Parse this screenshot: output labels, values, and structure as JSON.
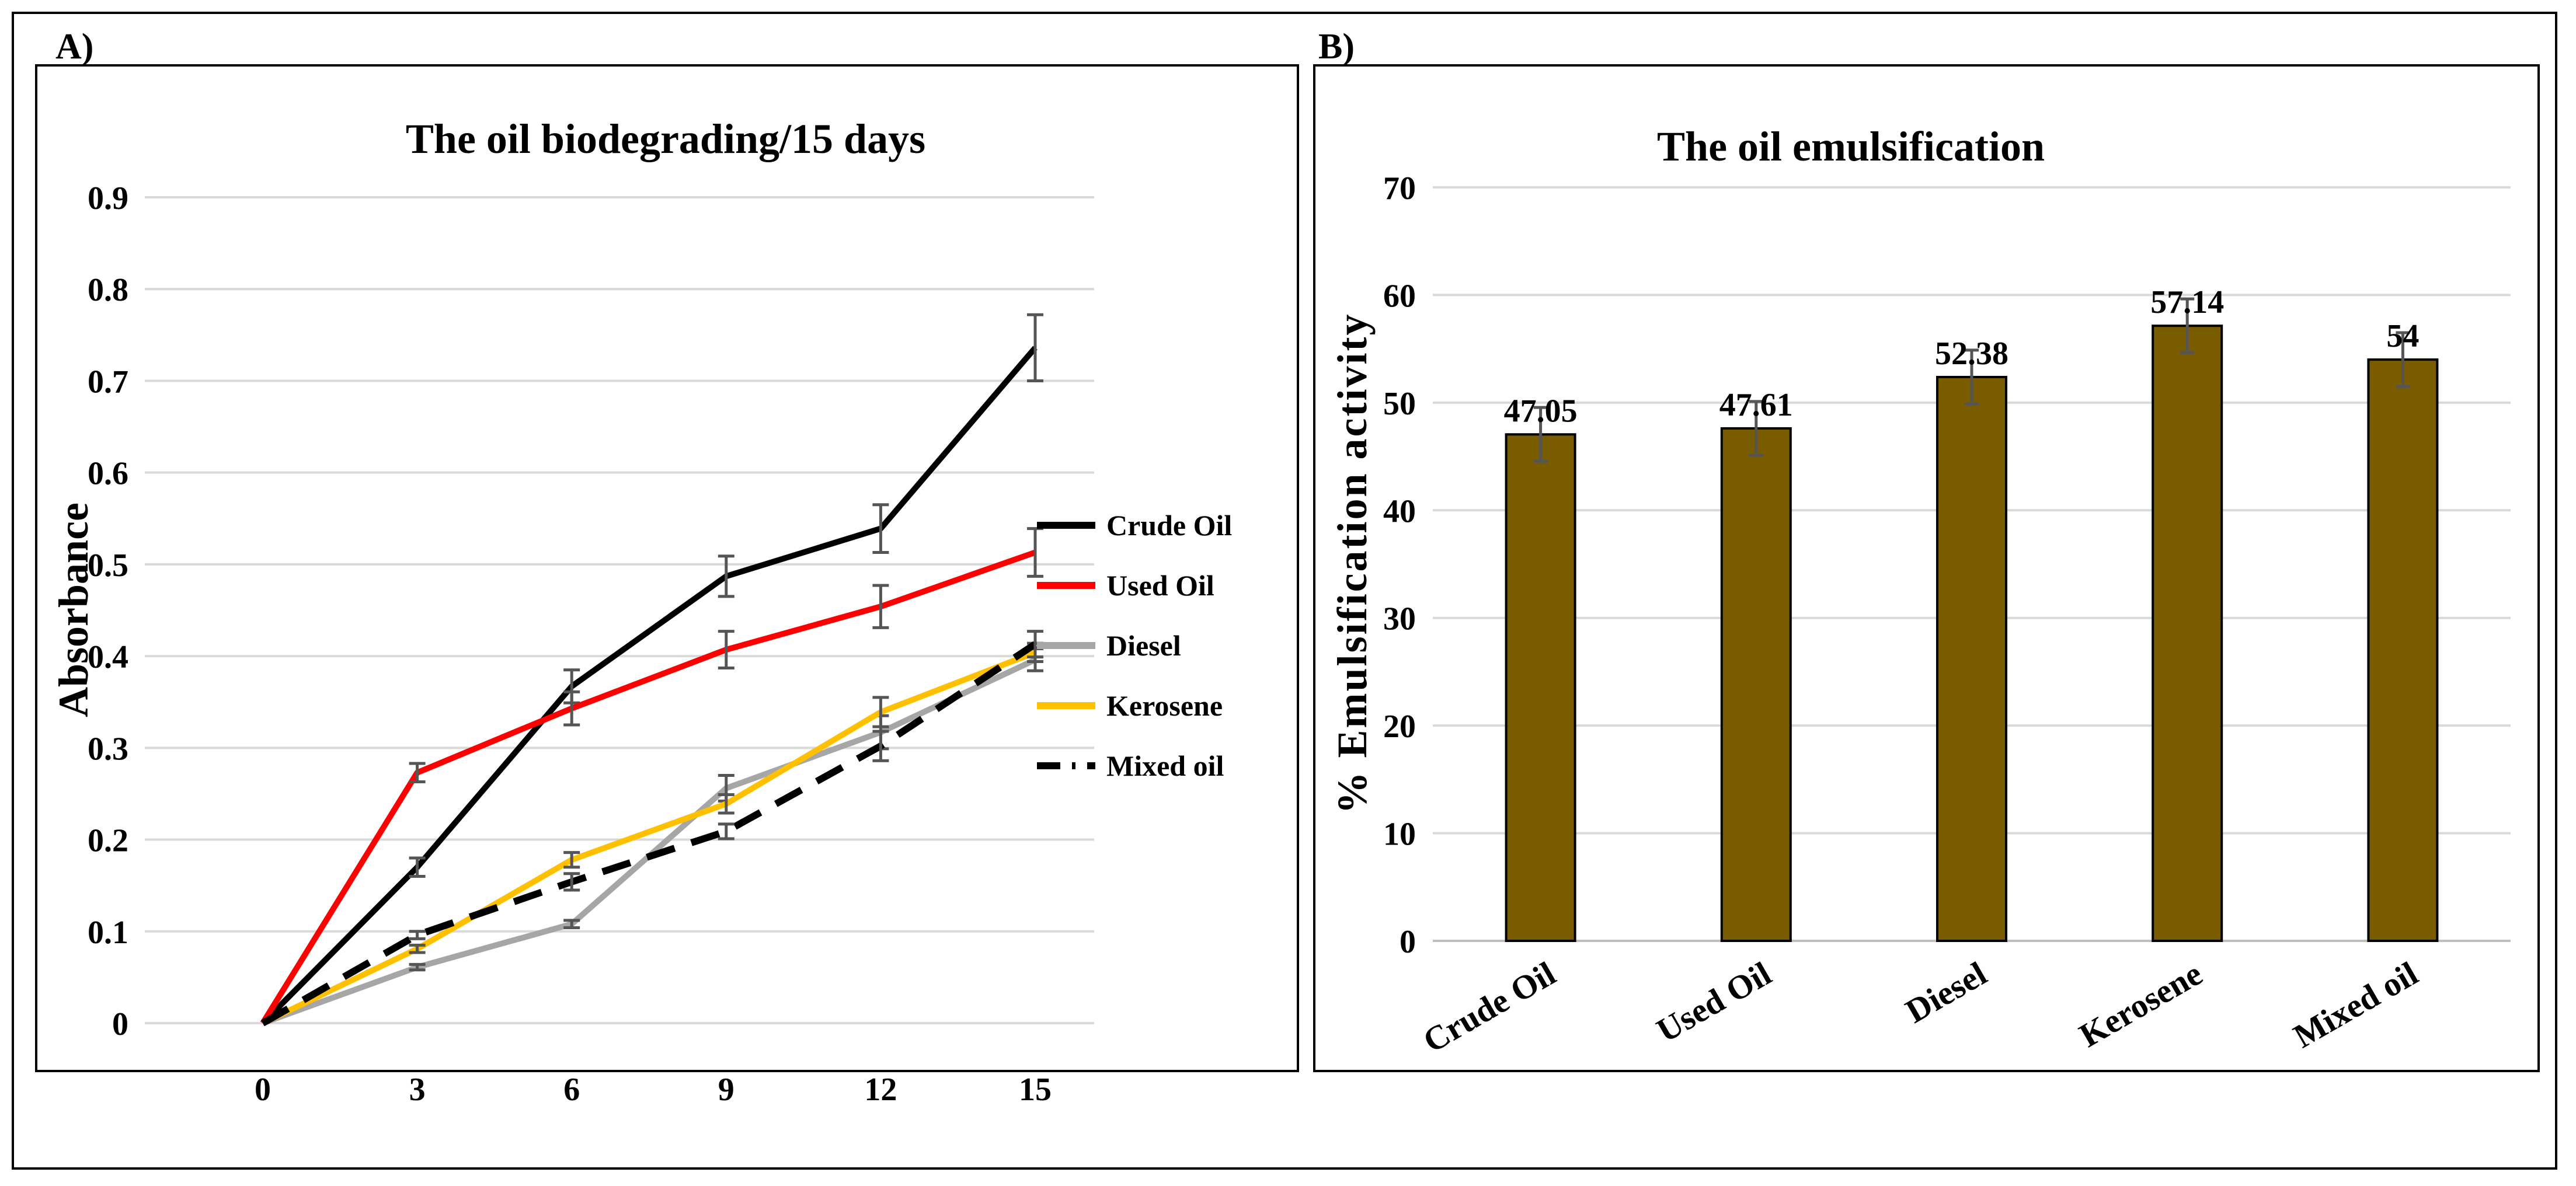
{
  "chart_data": [
    {
      "panel_label": "A)",
      "type": "line",
      "title": "The oil biodegrading/15 days",
      "xlabel": "",
      "ylabel": "Absorbance",
      "x": [
        0,
        3,
        6,
        9,
        12,
        15
      ],
      "x_ticks": [
        "0",
        "3",
        "6",
        "9",
        "12",
        "15"
      ],
      "y_ticks": [
        "0",
        "0.1",
        "0.2",
        "0.3",
        "0.4",
        "0.5",
        "0.6",
        "0.7",
        "0.8",
        "0.9"
      ],
      "ylim": [
        0,
        0.9
      ],
      "grid": true,
      "legend_position": "right",
      "series": [
        {
          "name": "Crude Oil",
          "color": "#000000",
          "dash": false,
          "values": [
            0,
            0.17,
            0.367,
            0.487,
            0.539,
            0.736
          ],
          "errors": [
            0,
            0.01,
            0.018,
            0.022,
            0.026,
            0.036
          ]
        },
        {
          "name": "Used Oil",
          "color": "#ff0000",
          "dash": false,
          "values": [
            0,
            0.273,
            0.343,
            0.407,
            0.454,
            0.513
          ],
          "errors": [
            0,
            0.01,
            0.018,
            0.02,
            0.023,
            0.026
          ]
        },
        {
          "name": "Diesel",
          "color": "#a6a6a6",
          "dash": false,
          "values": [
            0,
            0.061,
            0.108,
            0.256,
            0.317,
            0.396
          ],
          "errors": [
            0,
            0.003,
            0.004,
            0.014,
            0.018,
            0.012
          ]
        },
        {
          "name": "Kerosene",
          "color": "#ffc000",
          "dash": false,
          "values": [
            0,
            0.081,
            0.178,
            0.239,
            0.339,
            0.404
          ],
          "errors": [
            0,
            0.004,
            0.008,
            0.01,
            0.016,
            0.01
          ]
        },
        {
          "name": "Mixed oil",
          "color": "#000000",
          "dash": true,
          "values": [
            0,
            0.096,
            0.154,
            0.209,
            0.302,
            0.413
          ],
          "errors": [
            0,
            0.004,
            0.009,
            0.008,
            0.016,
            0.014
          ]
        }
      ]
    },
    {
      "panel_label": "B)",
      "type": "bar",
      "title": "The oil emulsification",
      "xlabel": "",
      "ylabel": "% Emulsification activity",
      "categories": [
        "Crude Oil",
        "Used Oil",
        "Diesel",
        "Kerosene",
        "Mixed oil"
      ],
      "values": [
        47.05,
        47.61,
        52.38,
        57.14,
        54
      ],
      "data_labels": [
        "47.05",
        "47.61",
        "52.38",
        "57.14",
        "54"
      ],
      "errors": [
        2.5,
        2.5,
        2.5,
        2.5,
        2.5
      ],
      "y_ticks": [
        "0",
        "10",
        "20",
        "30",
        "40",
        "50",
        "60",
        "70"
      ],
      "ylim": [
        0,
        70
      ],
      "grid": true,
      "bar_color": "#7a5c00"
    }
  ]
}
